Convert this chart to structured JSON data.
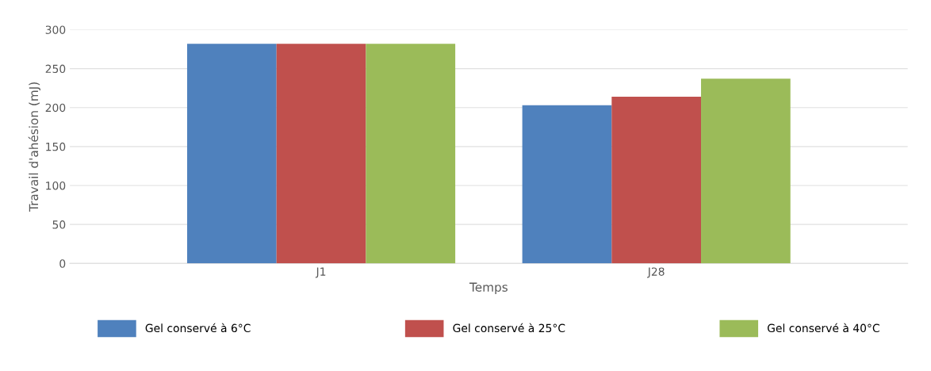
{
  "chart_data": {
    "type": "bar",
    "xlabel": "Temps",
    "ylabel": "Travail d'ahésion (mJ)",
    "categories": [
      "J1",
      "J28"
    ],
    "series": [
      {
        "name": "Gel conservé à 6°C",
        "color": "#4f81bd",
        "values": [
          282,
          203
        ]
      },
      {
        "name": "Gel conservé à 25°C",
        "color": "#c0504d",
        "values": [
          282,
          214
        ]
      },
      {
        "name": "Gel conservé à 40°C",
        "color": "#9bbb59",
        "values": [
          282,
          237
        ]
      }
    ],
    "ylim": [
      0,
      300
    ],
    "yticks": [
      0,
      50,
      100,
      150,
      200,
      250,
      300
    ],
    "grid": "y",
    "legend": "bottom"
  }
}
